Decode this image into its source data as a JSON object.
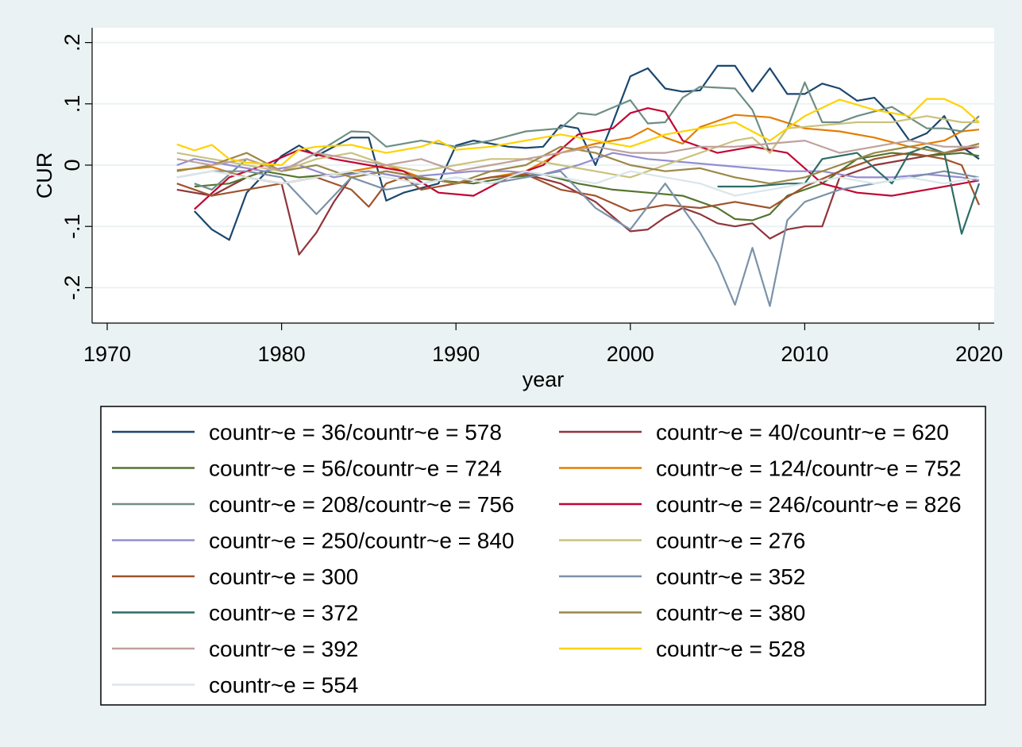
{
  "chart_data": {
    "type": "line",
    "xlabel": "year",
    "ylabel": "CUR",
    "xlim": [
      1970,
      2021
    ],
    "ylim": [
      -0.26,
      0.22
    ],
    "x_ticks": [
      1970,
      1980,
      1990,
      2000,
      2010,
      2020
    ],
    "x_tick_labels": [
      "1970",
      "1980",
      "1990",
      "2000",
      "2010",
      "2020"
    ],
    "y_ticks": [
      -0.2,
      -0.1,
      0,
      0.1,
      0.2
    ],
    "y_tick_labels": [
      "-.2",
      "-.1",
      "0",
      ".1",
      ".2"
    ],
    "grid": true,
    "legend_position": "bottom",
    "series": [
      {
        "name": "countr~e = 36/countr~e = 578",
        "color": "#1a476f",
        "x": [
          1975,
          1976,
          1977,
          1978,
          1980,
          1981,
          1982,
          1984,
          1985,
          1986,
          1987,
          1989,
          1990,
          1991,
          1993,
          1994,
          1995,
          1996,
          1997,
          1998,
          1999,
          2000,
          2001,
          2002,
          2003,
          2004,
          2005,
          2006,
          2007,
          2008,
          2009,
          2010,
          2011,
          2012,
          2013,
          2014,
          2015,
          2016,
          2017,
          2018,
          2019,
          2020
        ],
        "y": [
          -0.075,
          -0.105,
          -0.122,
          -0.045,
          0.015,
          0.032,
          0.015,
          0.045,
          0.045,
          -0.058,
          -0.045,
          -0.03,
          0.032,
          0.04,
          0.03,
          0.028,
          0.03,
          0.065,
          0.06,
          0.0,
          0.07,
          0.145,
          0.158,
          0.125,
          0.12,
          0.122,
          0.162,
          0.162,
          0.12,
          0.158,
          0.116,
          0.116,
          0.133,
          0.125,
          0.105,
          0.11,
          0.08,
          0.04,
          0.052,
          0.08,
          0.03,
          0.01
        ]
      },
      {
        "name": "countr~e = 40/countr~e = 620",
        "color": "#90353b",
        "x": [
          1974,
          1976,
          1978,
          1980,
          1981,
          1982,
          1983,
          1984,
          1986,
          1988,
          1990,
          1992,
          1994,
          1996,
          1998,
          2000,
          2001,
          2002,
          2003,
          2004,
          2005,
          2006,
          2007,
          2008,
          2009,
          2010,
          2011,
          2012,
          2014,
          2016,
          2018,
          2020
        ],
        "y": [
          -0.04,
          -0.05,
          -0.02,
          -0.03,
          -0.146,
          -0.11,
          -0.06,
          -0.02,
          -0.01,
          -0.02,
          -0.03,
          -0.02,
          -0.015,
          -0.03,
          -0.06,
          -0.108,
          -0.105,
          -0.085,
          -0.07,
          -0.08,
          -0.095,
          -0.1,
          -0.095,
          -0.12,
          -0.105,
          -0.1,
          -0.1,
          -0.02,
          0.0,
          0.01,
          0.02,
          0.03
        ]
      },
      {
        "name": "countr~e = 56/countr~e = 724",
        "color": "#55752f",
        "x": [
          1975,
          1977,
          1979,
          1981,
          1983,
          1985,
          1987,
          1989,
          1991,
          1993,
          1995,
          1997,
          1999,
          2001,
          2003,
          2005,
          2006,
          2007,
          2008,
          2009,
          2011,
          2013,
          2015,
          2017,
          2019,
          2020
        ],
        "y": [
          -0.035,
          -0.03,
          -0.01,
          -0.02,
          -0.015,
          -0.01,
          -0.02,
          -0.025,
          -0.03,
          -0.02,
          -0.015,
          -0.03,
          -0.04,
          -0.045,
          -0.05,
          -0.07,
          -0.088,
          -0.09,
          -0.08,
          -0.05,
          -0.03,
          0.01,
          0.02,
          0.015,
          0.02,
          0.015
        ]
      },
      {
        "name": "countr~e = 124/countr~e = 752",
        "color": "#e37e00",
        "x": [
          1974,
          1976,
          1978,
          1980,
          1982,
          1984,
          1986,
          1988,
          1990,
          1992,
          1994,
          1996,
          1998,
          2000,
          2001,
          2002,
          2003,
          2004,
          2006,
          2008,
          2010,
          2012,
          2014,
          2016,
          2018,
          2019,
          2020
        ],
        "y": [
          -0.008,
          -0.003,
          -0.02,
          -0.03,
          -0.02,
          -0.01,
          0.0,
          -0.02,
          -0.03,
          -0.02,
          -0.01,
          0.02,
          0.035,
          0.045,
          0.06,
          0.045,
          0.035,
          0.062,
          0.082,
          0.078,
          0.06,
          0.055,
          0.045,
          0.03,
          0.04,
          0.055,
          0.058
        ]
      },
      {
        "name": "countr~e = 208/countr~e = 756",
        "color": "#6e8e84",
        "x": [
          1975,
          1976,
          1978,
          1980,
          1982,
          1984,
          1985,
          1986,
          1988,
          1990,
          1992,
          1994,
          1996,
          1997,
          1998,
          2000,
          2001,
          2002,
          2003,
          2004,
          2006,
          2007,
          2008,
          2009,
          2010,
          2011,
          2012,
          2013,
          2015,
          2017,
          2018,
          2019,
          2020
        ],
        "y": [
          -0.03,
          -0.04,
          0.01,
          -0.01,
          0.02,
          0.055,
          0.054,
          0.03,
          0.04,
          0.03,
          0.04,
          0.055,
          0.06,
          0.085,
          0.082,
          0.106,
          0.068,
          0.07,
          0.11,
          0.128,
          0.125,
          0.09,
          0.02,
          0.06,
          0.135,
          0.07,
          0.07,
          0.08,
          0.095,
          0.06,
          0.06,
          0.055,
          0.08
        ]
      },
      {
        "name": "countr~e = 246/countr~e = 826",
        "color": "#c10534",
        "x": [
          1975,
          1977,
          1979,
          1981,
          1983,
          1985,
          1987,
          1989,
          1991,
          1993,
          1995,
          1997,
          1999,
          2000,
          2001,
          2002,
          2003,
          2005,
          2007,
          2009,
          2011,
          2013,
          2015,
          2017,
          2019,
          2020
        ],
        "y": [
          -0.072,
          -0.02,
          0.0,
          0.025,
          0.01,
          0.0,
          -0.01,
          -0.045,
          -0.05,
          -0.02,
          0.0,
          0.05,
          0.06,
          0.085,
          0.093,
          0.087,
          0.04,
          0.02,
          0.03,
          0.02,
          -0.03,
          -0.045,
          -0.05,
          -0.04,
          -0.03,
          -0.025
        ]
      },
      {
        "name": "countr~e = 250/countr~e = 840",
        "color": "#938dd2",
        "x": [
          1974,
          1975,
          1977,
          1979,
          1981,
          1983,
          1985,
          1987,
          1989,
          1991,
          1993,
          1995,
          1997,
          1999,
          2001,
          2003,
          2005,
          2007,
          2009,
          2011,
          2013,
          2015,
          2017,
          2019,
          2020
        ],
        "y": [
          0.0,
          0.01,
          0.0,
          -0.01,
          0.0,
          -0.02,
          -0.01,
          -0.02,
          -0.015,
          -0.01,
          -0.01,
          -0.015,
          0.0,
          0.02,
          0.01,
          0.005,
          0.0,
          -0.005,
          -0.01,
          -0.01,
          -0.02,
          -0.02,
          -0.015,
          -0.02,
          -0.025
        ]
      },
      {
        "name": "countr~e = 276",
        "color": "#cac27e",
        "x": [
          1974,
          1976,
          1978,
          1980,
          1982,
          1984,
          1986,
          1988,
          1990,
          1992,
          1994,
          1996,
          1998,
          2000,
          2002,
          2004,
          2006,
          2007,
          2008,
          2009,
          2011,
          2013,
          2015,
          2017,
          2019,
          2020
        ],
        "y": [
          0.02,
          0.01,
          0.0,
          -0.01,
          0.01,
          0.02,
          0.0,
          -0.01,
          0.0,
          0.01,
          0.01,
          0.0,
          -0.01,
          -0.02,
          0.0,
          0.02,
          0.04,
          0.045,
          0.02,
          0.06,
          0.065,
          0.07,
          0.07,
          0.08,
          0.07,
          0.07
        ]
      },
      {
        "name": "countr~e = 300",
        "color": "#a0522d",
        "x": [
          1974,
          1976,
          1978,
          1980,
          1982,
          1984,
          1985,
          1986,
          1987,
          1988,
          1990,
          1992,
          1994,
          1996,
          1998,
          2000,
          2002,
          2004,
          2006,
          2008,
          2010,
          2012,
          2014,
          2016,
          2018,
          2019,
          2020
        ],
        "y": [
          -0.03,
          -0.05,
          -0.04,
          -0.03,
          -0.02,
          -0.04,
          -0.068,
          -0.03,
          -0.02,
          -0.04,
          -0.03,
          -0.02,
          -0.015,
          -0.04,
          -0.05,
          -0.075,
          -0.065,
          -0.07,
          -0.06,
          -0.07,
          -0.035,
          -0.01,
          0.01,
          0.02,
          0.01,
          0.0,
          -0.065
        ]
      },
      {
        "name": "countr~e = 352",
        "color": "#7b92a8",
        "x": [
          1974,
          1976,
          1978,
          1980,
          1982,
          1984,
          1986,
          1988,
          1990,
          1992,
          1994,
          1996,
          1998,
          2000,
          2002,
          2004,
          2005,
          2006,
          2007,
          2008,
          2009,
          2010,
          2012,
          2014,
          2016,
          2018,
          2020
        ],
        "y": [
          -0.02,
          -0.01,
          -0.01,
          -0.02,
          -0.08,
          -0.02,
          -0.04,
          -0.03,
          -0.02,
          -0.03,
          -0.02,
          -0.01,
          -0.07,
          -0.105,
          -0.03,
          -0.11,
          -0.16,
          -0.228,
          -0.135,
          -0.23,
          -0.09,
          -0.06,
          -0.04,
          -0.03,
          -0.02,
          -0.01,
          -0.02
        ]
      },
      {
        "name": "countr~e = 372",
        "color": "#2d6d66",
        "x": [
          2005,
          2007,
          2009,
          2010,
          2011,
          2013,
          2015,
          2016,
          2017,
          2018,
          2019,
          2020
        ],
        "y": [
          -0.035,
          -0.035,
          -0.03,
          -0.03,
          0.01,
          0.02,
          -0.03,
          0.02,
          0.03,
          0.02,
          -0.112,
          -0.03
        ]
      },
      {
        "name": "countr~e = 380",
        "color": "#9c8847",
        "x": [
          1974,
          1976,
          1978,
          1980,
          1982,
          1984,
          1986,
          1988,
          1990,
          1992,
          1994,
          1996,
          1998,
          2000,
          2002,
          2004,
          2006,
          2008,
          2010,
          2012,
          2014,
          2016,
          2018,
          2020
        ],
        "y": [
          -0.01,
          0.0,
          0.02,
          -0.01,
          0.0,
          -0.02,
          -0.01,
          -0.02,
          -0.03,
          -0.01,
          0.0,
          0.03,
          0.02,
          0.0,
          -0.01,
          -0.005,
          -0.02,
          -0.03,
          -0.02,
          0.0,
          0.02,
          0.03,
          0.02,
          0.035
        ]
      },
      {
        "name": "countr~e = 392",
        "color": "#bfa19c",
        "x": [
          1974,
          1976,
          1978,
          1980,
          1982,
          1984,
          1986,
          1988,
          1990,
          1992,
          1994,
          1996,
          1998,
          2000,
          2002,
          2004,
          2006,
          2008,
          2010,
          2012,
          2014,
          2016,
          2018,
          2020
        ],
        "y": [
          0.01,
          0.0,
          0.01,
          -0.01,
          0.02,
          0.01,
          0.0,
          0.01,
          -0.01,
          0.0,
          0.01,
          0.02,
          0.03,
          0.02,
          0.02,
          0.03,
          0.03,
          0.035,
          0.04,
          0.02,
          0.03,
          0.04,
          0.03,
          0.03
        ]
      },
      {
        "name": "countr~e = 528",
        "color": "#ffd200",
        "x": [
          1974,
          1975,
          1976,
          1977,
          1978,
          1980,
          1981,
          1982,
          1984,
          1986,
          1988,
          1989,
          1990,
          1992,
          1994,
          1996,
          1998,
          2000,
          2002,
          2004,
          2006,
          2008,
          2010,
          2012,
          2014,
          2016,
          2017,
          2018,
          2019,
          2020
        ],
        "y": [
          0.034,
          0.024,
          0.033,
          0.01,
          0.004,
          0.0,
          0.025,
          0.03,
          0.033,
          0.02,
          0.03,
          0.04,
          0.025,
          0.03,
          0.04,
          0.05,
          0.04,
          0.03,
          0.05,
          0.06,
          0.07,
          0.04,
          0.08,
          0.107,
          0.09,
          0.08,
          0.108,
          0.108,
          0.095,
          0.07
        ]
      },
      {
        "name": "countr~e = 554",
        "color": "#d9e6eb",
        "x": [
          1974,
          1976,
          1978,
          1980,
          1982,
          1984,
          1986,
          1988,
          1990,
          1992,
          1994,
          1996,
          1998,
          2000,
          2002,
          2004,
          2006,
          2008,
          2010,
          2012,
          2014,
          2016,
          2018,
          2020
        ],
        "y": [
          -0.02,
          -0.01,
          -0.02,
          -0.03,
          -0.02,
          -0.01,
          -0.02,
          -0.03,
          -0.02,
          -0.03,
          -0.01,
          -0.02,
          -0.03,
          -0.01,
          -0.02,
          -0.03,
          -0.05,
          -0.04,
          -0.03,
          -0.02,
          -0.03,
          -0.02,
          -0.03,
          -0.02
        ]
      }
    ]
  }
}
